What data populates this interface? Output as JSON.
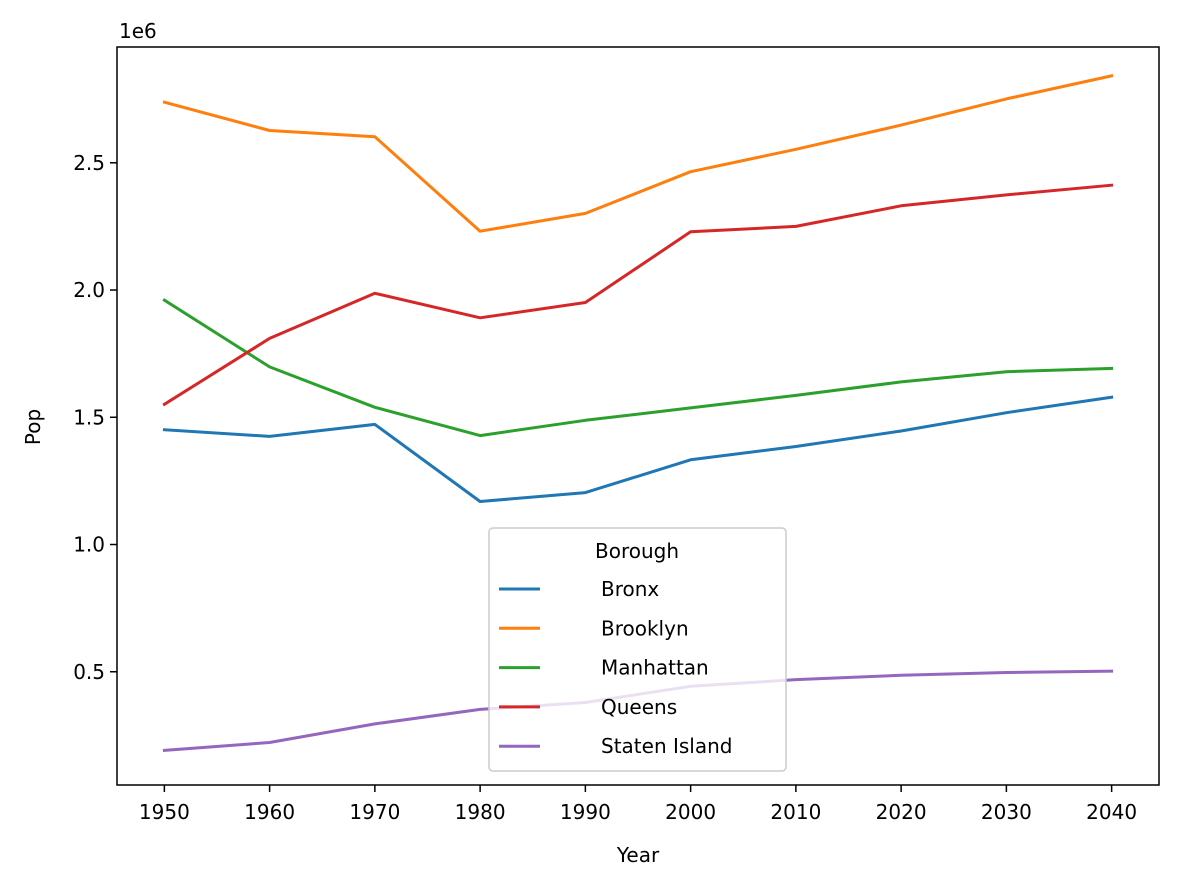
{
  "chart_data": {
    "type": "line",
    "xlabel": "Year",
    "ylabel": "Pop",
    "y_offset_label": "1e6",
    "x": [
      1950,
      1960,
      1970,
      1980,
      1990,
      2000,
      2010,
      2020,
      2030,
      2040
    ],
    "x_tick_labels": [
      "1950",
      "1960",
      "1970",
      "1980",
      "1990",
      "2000",
      "2010",
      "2020",
      "2030",
      "2040"
    ],
    "y_ticks": [
      0.5,
      1.0,
      1.5,
      2.0,
      2.5
    ],
    "y_tick_labels": [
      "0.5",
      "1.0",
      "1.5",
      "2.0",
      "2.5"
    ],
    "xlim": [
      1945.5,
      2044.5
    ],
    "ylim": [
      0.055,
      2.955
    ],
    "grid": false,
    "legend": {
      "title": "Borough",
      "placement": "lower center"
    },
    "series": [
      {
        "name": "Bronx",
        "color": "#1f77b4",
        "values": [
          1.451,
          1.425,
          1.472,
          1.169,
          1.204,
          1.333,
          1.385,
          1.446,
          1.518,
          1.579
        ]
      },
      {
        "name": "Brooklyn",
        "color": "#ff7f0e",
        "values": [
          2.738,
          2.627,
          2.602,
          2.231,
          2.301,
          2.465,
          2.553,
          2.648,
          2.751,
          2.842
        ]
      },
      {
        "name": "Manhattan",
        "color": "#2ca02c",
        "values": [
          1.96,
          1.698,
          1.539,
          1.428,
          1.488,
          1.537,
          1.586,
          1.639,
          1.679,
          1.692
        ]
      },
      {
        "name": "Queens",
        "color": "#d62728",
        "values": [
          1.551,
          1.81,
          1.987,
          1.891,
          1.951,
          2.229,
          2.25,
          2.331,
          2.374,
          2.412
        ]
      },
      {
        "name": "Staten Island",
        "color": "#9467bd",
        "values": [
          0.191,
          0.222,
          0.295,
          0.352,
          0.379,
          0.443,
          0.469,
          0.486,
          0.497,
          0.502
        ]
      }
    ]
  }
}
